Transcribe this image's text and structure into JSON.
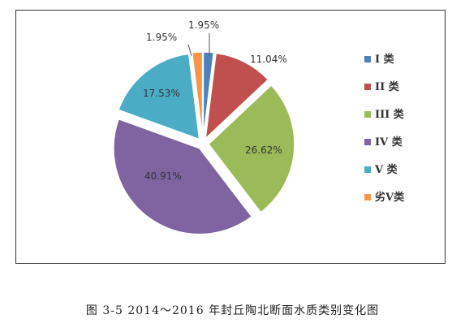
{
  "chart_data": {
    "type": "pie",
    "start_angle_deg": 0,
    "exploded": true,
    "show_percent_labels": true,
    "legend_position": "right",
    "slices": [
      {
        "label": "I 类",
        "value": 1.95,
        "display": "1.95%",
        "color": "#4F81BD"
      },
      {
        "label": "II 类",
        "value": 11.04,
        "display": "11.04%",
        "color": "#C0504D"
      },
      {
        "label": "III 类",
        "value": 26.62,
        "display": "26.62%",
        "color": "#9BBB59"
      },
      {
        "label": "IV 类",
        "value": 40.91,
        "display": "40.91%",
        "color": "#8064A2"
      },
      {
        "label": "V 类",
        "value": 17.53,
        "display": "17.53%",
        "color": "#4BACC6"
      },
      {
        "label": "劣V类",
        "value": 1.95,
        "display": "1.95%",
        "color": "#F79646"
      }
    ]
  },
  "caption": "图 3-5  2014～2016 年封丘陶北断面水质类别变化图"
}
